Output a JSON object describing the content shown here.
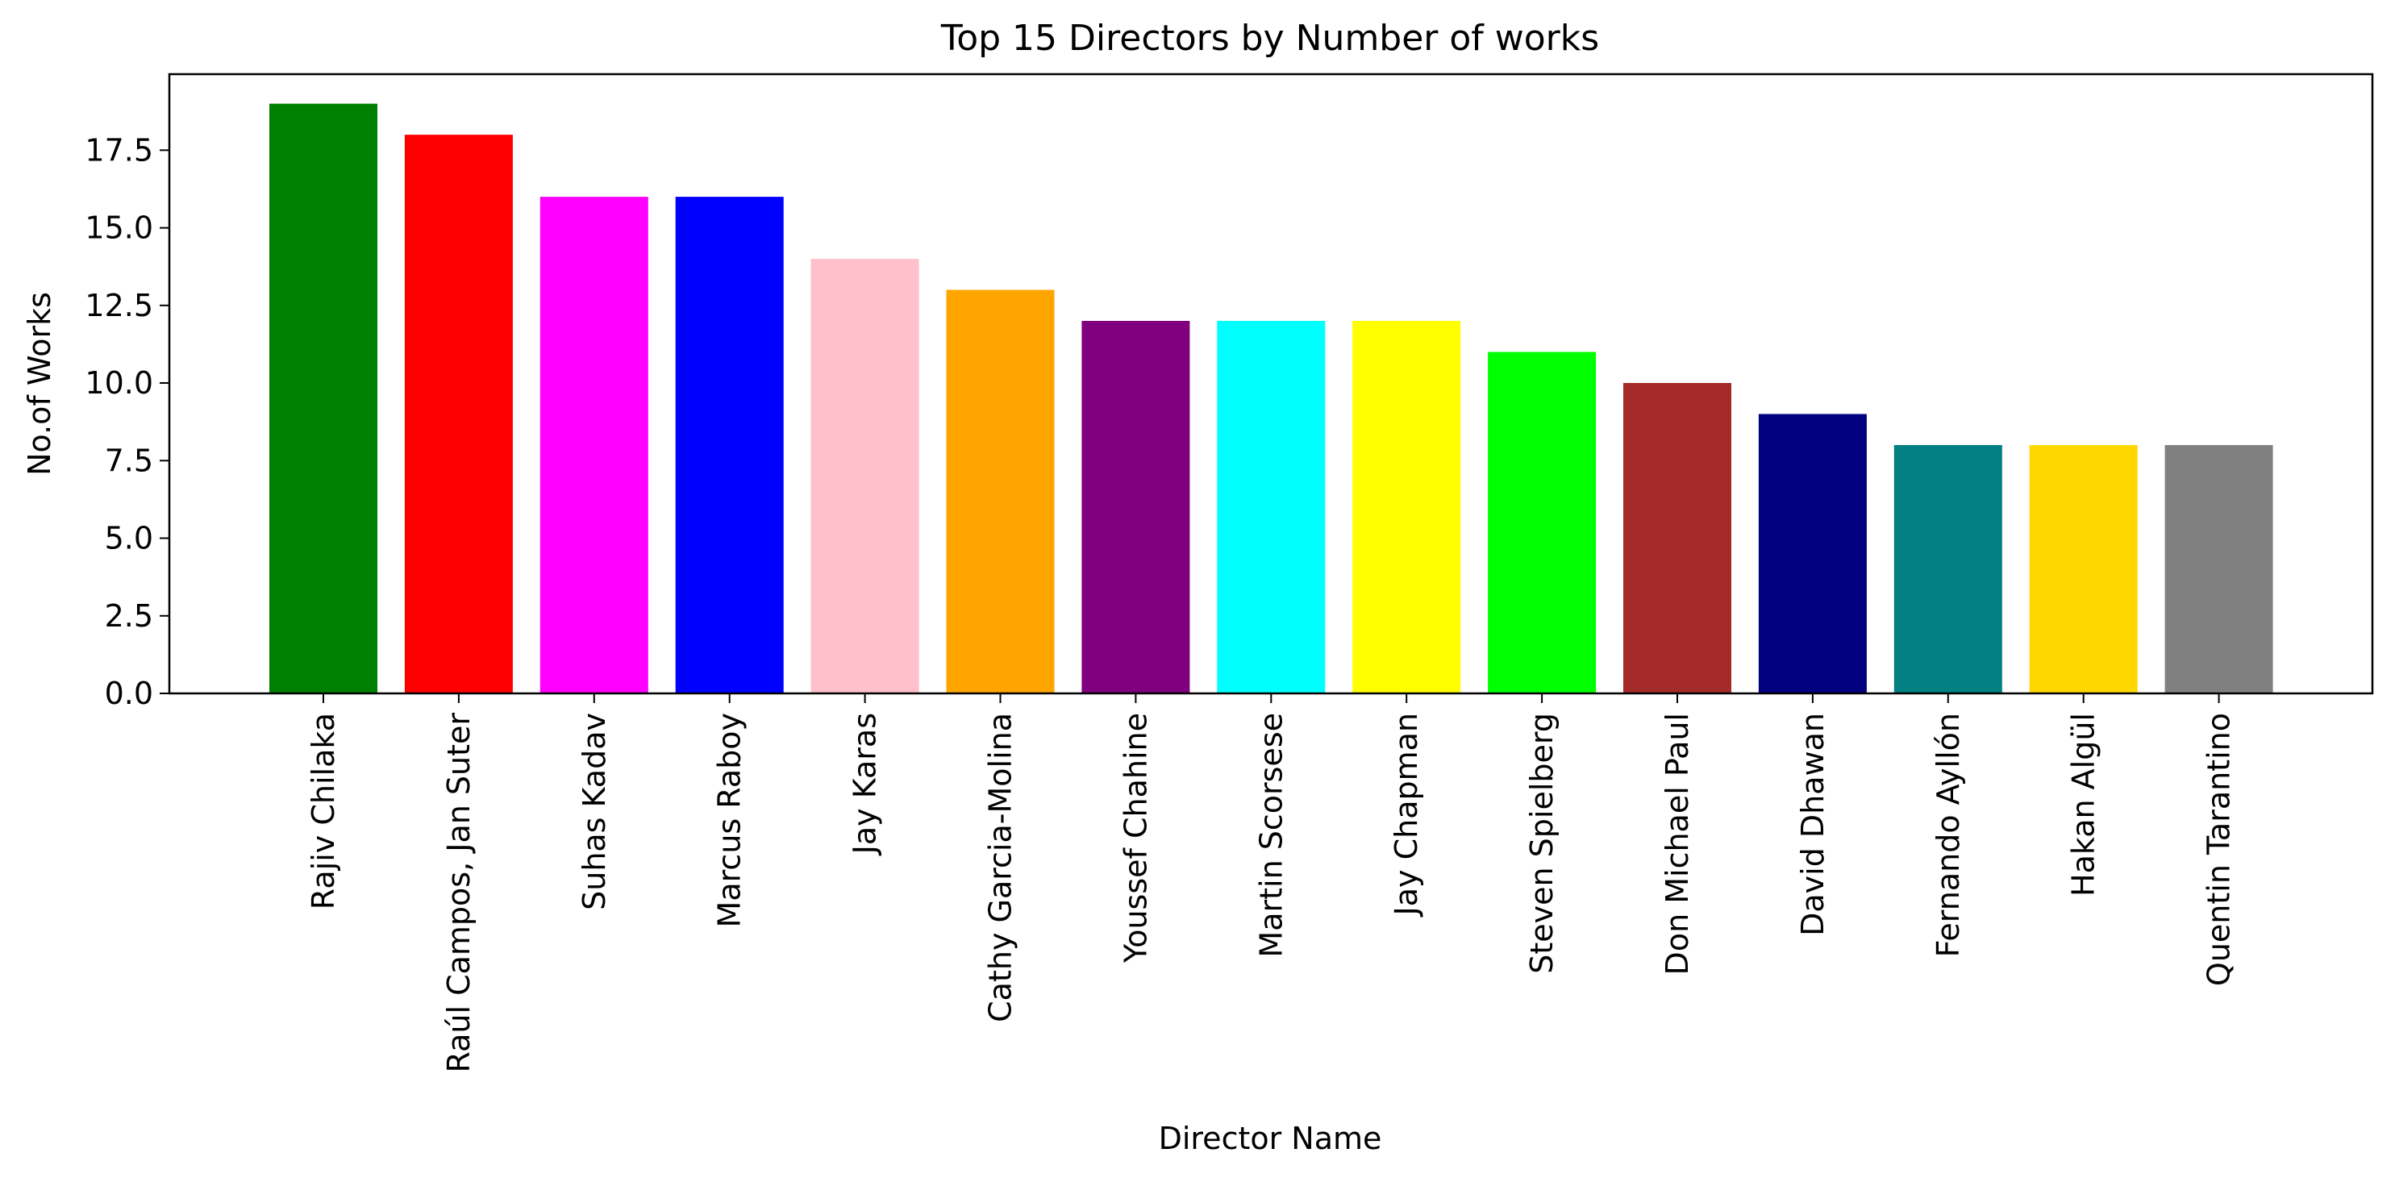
{
  "chart_data": {
    "type": "bar",
    "title": "Top 15 Directors by Number of works",
    "xlabel": "Director Name",
    "ylabel": "No.of Works",
    "categories": [
      "Rajiv Chilaka",
      "Raúl Campos, Jan Suter",
      "Suhas Kadav",
      "Marcus Raboy",
      "Jay Karas",
      "Cathy Garcia-Molina",
      "Youssef Chahine",
      "Martin Scorsese",
      "Jay Chapman",
      "Steven Spielberg",
      "Don Michael Paul",
      "David Dhawan",
      "Fernando Ayllón",
      "Hakan Algül",
      "Quentin Tarantino"
    ],
    "values": [
      19,
      18,
      16,
      16,
      14,
      13,
      12,
      12,
      12,
      11,
      10,
      9,
      8,
      8,
      8
    ],
    "colors": [
      "#008000",
      "#ff0000",
      "#ff00ff",
      "#0000ff",
      "#ffc0cb",
      "#ffa500",
      "#800080",
      "#00ffff",
      "#ffff00",
      "#00ff00",
      "#a52a2a",
      "#000080",
      "#008080",
      "#ffd700",
      "#808080"
    ],
    "ylim": [
      0,
      19.95
    ],
    "yticks": [
      "0.0",
      "2.5",
      "5.0",
      "7.5",
      "10.0",
      "12.5",
      "15.0",
      "17.5"
    ],
    "grid": false,
    "legend": "none"
  }
}
